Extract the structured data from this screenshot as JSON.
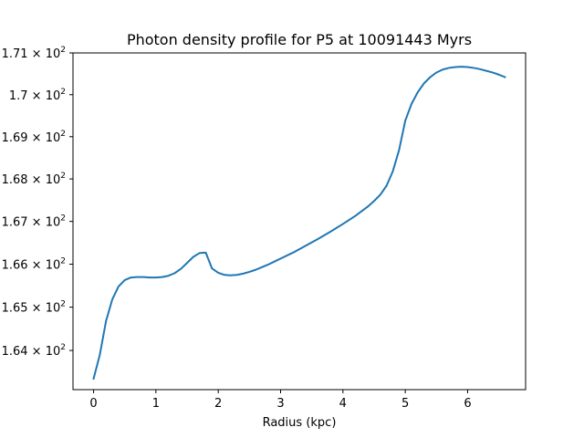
{
  "chart_data": {
    "type": "line",
    "title": "Photon density profile for P5 at 10091443 Myrs",
    "xlabel": "Radius (kpc)",
    "ylabel": "",
    "xlim": [
      -0.33,
      6.93
    ],
    "ylim": [
      163.1,
      171.0
    ],
    "y_scale": "log",
    "grid": false,
    "x_ticks": [
      {
        "value": 0,
        "label": "0"
      },
      {
        "value": 1,
        "label": "1"
      },
      {
        "value": 2,
        "label": "2"
      },
      {
        "value": 3,
        "label": "3"
      },
      {
        "value": 4,
        "label": "4"
      },
      {
        "value": 5,
        "label": "5"
      },
      {
        "value": 6,
        "label": "6"
      }
    ],
    "y_ticks": [
      {
        "value": 164,
        "mantissa": "1.64",
        "base": "10",
        "exp": "2"
      },
      {
        "value": 165,
        "mantissa": "1.65",
        "base": "10",
        "exp": "2"
      },
      {
        "value": 166,
        "mantissa": "1.66",
        "base": "10",
        "exp": "2"
      },
      {
        "value": 167,
        "mantissa": "1.67",
        "base": "10",
        "exp": "2"
      },
      {
        "value": 168,
        "mantissa": "1.68",
        "base": "10",
        "exp": "2"
      },
      {
        "value": 169,
        "mantissa": "1.69",
        "base": "10",
        "exp": "2"
      },
      {
        "value": 170,
        "mantissa": "1.7",
        "base": "10",
        "exp": "2"
      },
      {
        "value": 171,
        "mantissa": "1.71",
        "base": "10",
        "exp": "2"
      }
    ],
    "series": [
      {
        "color": "#1f77b4",
        "x": [
          0.0,
          0.1,
          0.2,
          0.3,
          0.4,
          0.5,
          0.6,
          0.7,
          0.8,
          0.9,
          1.0,
          1.1,
          1.2,
          1.3,
          1.4,
          1.5,
          1.6,
          1.7,
          1.8,
          1.9,
          2.0,
          2.1,
          2.2,
          2.3,
          2.4,
          2.5,
          2.6,
          2.7,
          2.8,
          2.9,
          3.0,
          3.2,
          3.4,
          3.6,
          3.8,
          4.0,
          4.2,
          4.4,
          4.5,
          4.6,
          4.7,
          4.8,
          4.9,
          5.0,
          5.1,
          5.2,
          5.3,
          5.4,
          5.5,
          5.6,
          5.7,
          5.8,
          5.9,
          6.0,
          6.1,
          6.2,
          6.3,
          6.4,
          6.5,
          6.6
        ],
        "y": [
          163.35,
          163.9,
          164.68,
          165.18,
          165.48,
          165.63,
          165.69,
          165.7,
          165.7,
          165.69,
          165.69,
          165.7,
          165.73,
          165.79,
          165.89,
          166.03,
          166.17,
          166.26,
          166.27,
          165.9,
          165.8,
          165.75,
          165.74,
          165.75,
          165.78,
          165.82,
          165.87,
          165.93,
          165.99,
          166.06,
          166.13,
          166.27,
          166.43,
          166.59,
          166.76,
          166.94,
          167.13,
          167.35,
          167.48,
          167.63,
          167.84,
          168.18,
          168.68,
          169.38,
          169.78,
          170.06,
          170.27,
          170.42,
          170.53,
          170.6,
          170.64,
          170.66,
          170.67,
          170.66,
          170.64,
          170.61,
          170.57,
          170.53,
          170.48,
          170.42
        ]
      }
    ]
  }
}
